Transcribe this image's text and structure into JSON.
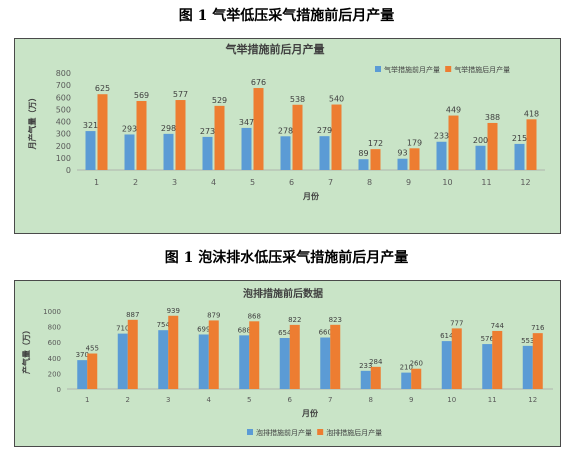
{
  "captions": {
    "figure1": "图 1  气举低压采气措施前后月产量",
    "figure2": "图 1  泡沫排水低压采气措施前后月产量"
  },
  "chart_data": [
    {
      "type": "bar",
      "title": "气举措施前后月产量",
      "xlabel": "月份",
      "ylabel": "月产气量（万）",
      "categories": [
        "1",
        "2",
        "3",
        "4",
        "5",
        "6",
        "7",
        "8",
        "9",
        "10",
        "11",
        "12"
      ],
      "ylim": [
        0,
        800
      ],
      "yticks": [
        0,
        100,
        200,
        300,
        400,
        500,
        600,
        700,
        800
      ],
      "grid": false,
      "legend_position": "top-right",
      "series": [
        {
          "name": "气举措施前月产量",
          "color": "#5b9bd5",
          "values": [
            321,
            293,
            298,
            273,
            347,
            278,
            279,
            89,
            93,
            233,
            200,
            215
          ]
        },
        {
          "name": "气举措施后月产量",
          "color": "#ed7d31",
          "values": [
            625,
            569,
            577,
            529,
            676,
            538,
            540,
            172,
            179,
            449,
            388,
            418
          ]
        }
      ]
    },
    {
      "type": "bar",
      "title": "泡排措施前后数据",
      "xlabel": "月份",
      "ylabel": "产气量（万）",
      "categories": [
        "1",
        "2",
        "3",
        "4",
        "5",
        "6",
        "7",
        "8",
        "9",
        "10",
        "11",
        "12"
      ],
      "ylim": [
        0,
        1000
      ],
      "yticks": [
        0,
        200,
        400,
        600,
        800,
        1000
      ],
      "grid": false,
      "legend_position": "bottom",
      "series": [
        {
          "name": "泡排措施前月产量",
          "color": "#5b9bd5",
          "values": [
            370,
            710,
            754,
            699,
            688,
            654,
            660,
            233,
            210,
            614,
            576,
            553
          ]
        },
        {
          "name": "泡排措施后月产量",
          "color": "#ed7d31",
          "values": [
            455,
            887,
            939,
            879,
            868,
            822,
            823,
            284,
            260,
            777,
            744,
            716
          ]
        }
      ]
    }
  ]
}
